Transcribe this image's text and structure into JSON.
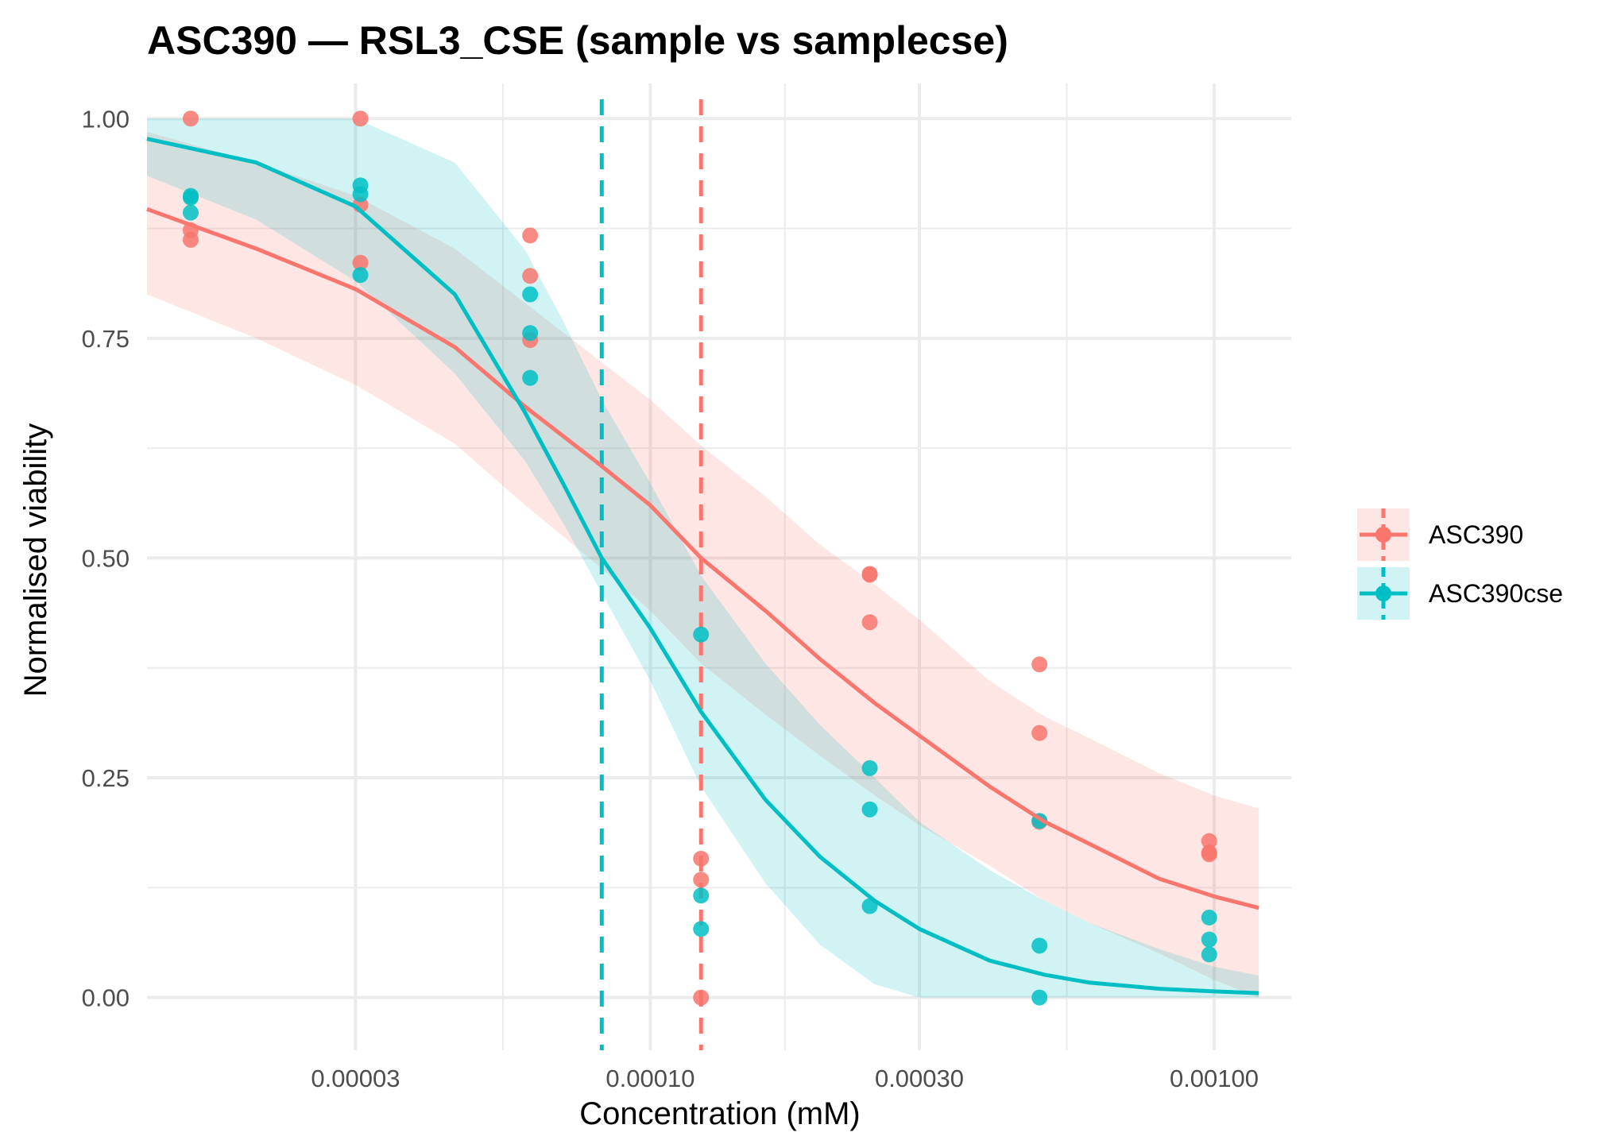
{
  "chart_data": {
    "type": "scatter",
    "title": "ASC390 — RSL3_CSE (sample vs samplecse)",
    "xlabel": "Concentration (mM)",
    "ylabel": "Normalised viability",
    "x_scale": "log10",
    "xlim": [
      1.28e-05,
      0.00137
    ],
    "ylim": [
      -0.06,
      1.04
    ],
    "x_ticks": [
      3e-05,
      0.0001,
      0.0003,
      0.001
    ],
    "x_tick_labels": [
      "0.00003",
      "0.00010",
      "0.00030",
      "0.00100"
    ],
    "y_ticks": [
      0,
      0.25,
      0.5,
      0.75,
      1.0
    ],
    "y_tick_labels": [
      "0.00",
      "0.25",
      "0.50",
      "0.75",
      "1.00"
    ],
    "grid": true,
    "legend_position": "right",
    "series": [
      {
        "name": "ASC390",
        "color": "#F8766D",
        "ic50": 0.000123,
        "points": [
          {
            "x": 1.53e-05,
            "y": 1.0
          },
          {
            "x": 1.53e-05,
            "y": 0.873
          },
          {
            "x": 1.53e-05,
            "y": 0.862
          },
          {
            "x": 3.06e-05,
            "y": 1.0
          },
          {
            "x": 3.06e-05,
            "y": 0.902
          },
          {
            "x": 3.06e-05,
            "y": 0.836
          },
          {
            "x": 6.12e-05,
            "y": 0.867
          },
          {
            "x": 6.12e-05,
            "y": 0.821
          },
          {
            "x": 6.12e-05,
            "y": 0.748
          },
          {
            "x": 0.000123,
            "y": 0.158
          },
          {
            "x": 0.000123,
            "y": 0.134
          },
          {
            "x": 0.000123,
            "y": 0.0
          },
          {
            "x": 0.000245,
            "y": 0.482
          },
          {
            "x": 0.000245,
            "y": 0.481
          },
          {
            "x": 0.000245,
            "y": 0.427
          },
          {
            "x": 0.00049,
            "y": 0.379
          },
          {
            "x": 0.00049,
            "y": 0.301
          },
          {
            "x": 0.00049,
            "y": 0.2
          },
          {
            "x": 0.00098,
            "y": 0.178
          },
          {
            "x": 0.00098,
            "y": 0.165
          },
          {
            "x": 0.00098,
            "y": 0.163
          }
        ],
        "curve": {
          "x": [
            1.28e-05,
            2e-05,
            3e-05,
            4.5e-05,
            6e-05,
            8e-05,
            0.0001,
            0.000123,
            0.00016,
            0.0002,
            0.00025,
            0.0003,
            0.0004,
            0.0005,
            0.0006,
            0.0008,
            0.001,
            0.0012
          ],
          "y": [
            0.897,
            0.852,
            0.806,
            0.74,
            0.672,
            0.61,
            0.56,
            0.5,
            0.44,
            0.385,
            0.335,
            0.298,
            0.24,
            0.2,
            0.175,
            0.135,
            0.115,
            0.102
          ],
          "lower": [
            0.8,
            0.75,
            0.697,
            0.63,
            0.56,
            0.494,
            0.44,
            0.38,
            0.322,
            0.275,
            0.23,
            0.196,
            0.15,
            0.11,
            0.085,
            0.05,
            0.02,
            0.0
          ],
          "upper": [
            0.985,
            0.95,
            0.912,
            0.852,
            0.79,
            0.728,
            0.68,
            0.628,
            0.57,
            0.515,
            0.47,
            0.43,
            0.36,
            0.32,
            0.295,
            0.255,
            0.23,
            0.215
          ]
        }
      },
      {
        "name": "ASC390cse",
        "color": "#00BFC4",
        "ic50": 8.2e-05,
        "points": [
          {
            "x": 1.53e-05,
            "y": 0.912
          },
          {
            "x": 1.53e-05,
            "y": 0.91
          },
          {
            "x": 1.53e-05,
            "y": 0.893
          },
          {
            "x": 3.06e-05,
            "y": 0.924
          },
          {
            "x": 3.06e-05,
            "y": 0.914
          },
          {
            "x": 3.06e-05,
            "y": 0.822
          },
          {
            "x": 6.12e-05,
            "y": 0.8
          },
          {
            "x": 6.12e-05,
            "y": 0.756
          },
          {
            "x": 6.12e-05,
            "y": 0.705
          },
          {
            "x": 0.000123,
            "y": 0.413
          },
          {
            "x": 0.000123,
            "y": 0.116
          },
          {
            "x": 0.000123,
            "y": 0.078
          },
          {
            "x": 0.000245,
            "y": 0.261
          },
          {
            "x": 0.000245,
            "y": 0.214
          },
          {
            "x": 0.000245,
            "y": 0.104
          },
          {
            "x": 0.00049,
            "y": 0.201
          },
          {
            "x": 0.00049,
            "y": 0.059
          },
          {
            "x": 0.00049,
            "y": 0.0
          },
          {
            "x": 0.00098,
            "y": 0.091
          },
          {
            "x": 0.00098,
            "y": 0.066
          },
          {
            "x": 0.00098,
            "y": 0.049
          }
        ],
        "curve": {
          "x": [
            1.28e-05,
            2e-05,
            3e-05,
            4.5e-05,
            6e-05,
            7e-05,
            8.2e-05,
            0.0001,
            0.000123,
            0.00016,
            0.0002,
            0.00025,
            0.0003,
            0.0004,
            0.0005,
            0.0006,
            0.0008,
            0.001,
            0.0012
          ],
          "y": [
            0.977,
            0.95,
            0.9,
            0.8,
            0.665,
            0.585,
            0.5,
            0.42,
            0.325,
            0.225,
            0.16,
            0.11,
            0.078,
            0.042,
            0.026,
            0.017,
            0.01,
            0.007,
            0.005
          ],
          "lower": [
            0.935,
            0.885,
            0.815,
            0.71,
            0.61,
            0.54,
            0.46,
            0.36,
            0.24,
            0.13,
            0.06,
            0.015,
            0.0,
            0.0,
            0.0,
            0.0,
            0.0,
            0.0,
            0.0
          ],
          "upper": [
            1.0,
            1.0,
            1.0,
            0.95,
            0.85,
            0.77,
            0.68,
            0.585,
            0.48,
            0.38,
            0.31,
            0.25,
            0.2,
            0.145,
            0.11,
            0.085,
            0.055,
            0.035,
            0.025
          ]
        }
      }
    ]
  }
}
